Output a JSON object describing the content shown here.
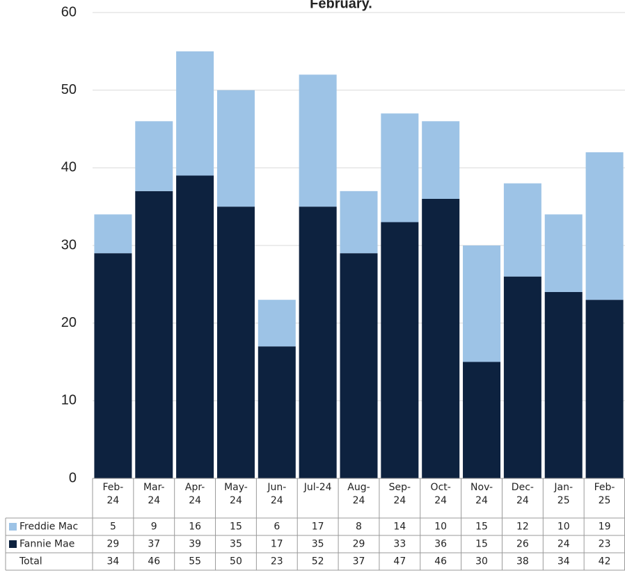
{
  "chart_data": {
    "type": "stacked-bar",
    "title": "February.",
    "categories": [
      "Feb-24",
      "Mar-24",
      "Apr-24",
      "May-24",
      "Jun-24",
      "Jul-24",
      "Aug-24",
      "Sep-24",
      "Oct-24",
      "Nov-24",
      "Dec-24",
      "Jan-25",
      "Feb-25"
    ],
    "series": [
      {
        "name": "Fannie Mae",
        "color": "#0d223f",
        "values": [
          29,
          37,
          39,
          35,
          17,
          35,
          29,
          33,
          36,
          15,
          26,
          24,
          23
        ]
      },
      {
        "name": "Freddie Mac",
        "color": "#9dc3e6",
        "values": [
          5,
          9,
          16,
          15,
          6,
          17,
          8,
          14,
          10,
          15,
          12,
          10,
          19
        ]
      }
    ],
    "total_label": "Total",
    "totals": [
      34,
      46,
      55,
      50,
      23,
      52,
      37,
      47,
      46,
      30,
      38,
      34,
      42
    ],
    "ylim": [
      0,
      60
    ],
    "yticks": [
      0,
      10,
      20,
      30,
      40,
      50,
      60
    ],
    "grid": true
  }
}
